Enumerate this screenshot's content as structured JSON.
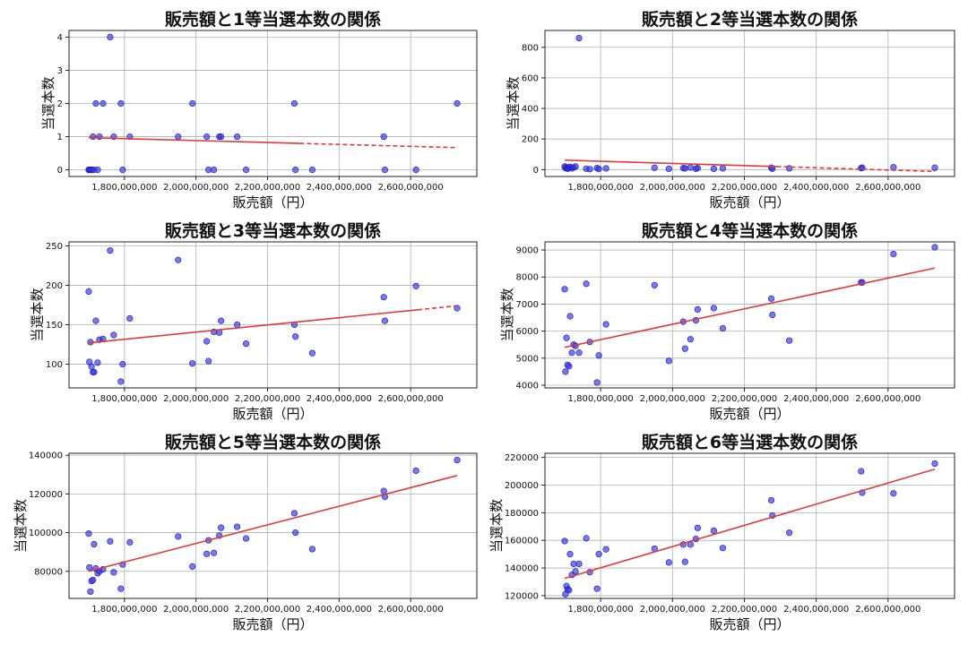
{
  "colors": {
    "point": "#2f2fe8",
    "trend": "#e23a3a",
    "grid": "#b0b0b0"
  },
  "x_values": [
    1700000000,
    1702000000,
    1705000000,
    1708000000,
    1712000000,
    1715000000,
    1720000000,
    1725000000,
    1730000000,
    1740000000,
    1760000000,
    1770000000,
    1790000000,
    1795000000,
    1815000000,
    1950000000,
    1990000000,
    2030000000,
    2035000000,
    2050000000,
    2065000000,
    2070000000,
    2115000000,
    2140000000,
    2275000000,
    2278000000,
    2325000000,
    2525000000,
    2528000000,
    2615000000,
    2730000000
  ],
  "chart_data": [
    {
      "type": "scatter",
      "title": "販売額と1等当選本数の関係",
      "xlabel": "販売額（円）",
      "ylabel": "当選本数",
      "xlim": [
        1645000000,
        2785000000
      ],
      "ylim": [
        -0.2,
        4.2
      ],
      "x_ticks": [
        1800000000,
        2000000000,
        2200000000,
        2400000000,
        2600000000
      ],
      "x_tick_labels": [
        "1,800,000,000",
        "2,000,000,000",
        "2,200,000,000",
        "2,400,000,000",
        "2,600,000,000"
      ],
      "y_ticks": [
        0,
        1,
        2,
        3,
        4
      ],
      "y_tick_labels": [
        "0",
        "1",
        "2",
        "3",
        "4"
      ],
      "y": [
        0,
        0,
        0,
        0,
        1,
        0,
        2,
        0,
        1,
        2,
        4,
        1,
        2,
        0,
        1,
        1,
        2,
        1,
        0,
        0,
        1,
        1,
        1,
        0,
        2,
        0,
        0,
        1,
        0,
        0,
        2
      ],
      "trend": {
        "x": [
          1700000000,
          2730000000
        ],
        "y": [
          0.97,
          0.67
        ],
        "solid_until": 2290000000
      },
      "grid": true
    },
    {
      "type": "scatter",
      "title": "販売額と2等当選本数の関係",
      "xlabel": "販売額（円）",
      "ylabel": "当選本数",
      "xlim": [
        1645000000,
        2785000000
      ],
      "ylim": [
        -45,
        910
      ],
      "x_ticks": [
        1800000000,
        2000000000,
        2200000000,
        2400000000,
        2600000000
      ],
      "x_tick_labels": [
        "1,800,000,000",
        "2,000,000,000",
        "2,200,000,000",
        "2,400,000,000",
        "2,600,000,000"
      ],
      "y_ticks": [
        0,
        200,
        400,
        600,
        800
      ],
      "y_tick_labels": [
        "0",
        "200",
        "400",
        "600",
        "800"
      ],
      "y": [
        20,
        10,
        15,
        5,
        12,
        18,
        8,
        14,
        20,
        860,
        6,
        3,
        10,
        4,
        8,
        12,
        5,
        10,
        8,
        14,
        6,
        10,
        5,
        8,
        12,
        6,
        8,
        10,
        12,
        15,
        12
      ],
      "trend": {
        "x": [
          1700000000,
          2730000000
        ],
        "y": [
          62,
          -12
        ],
        "solid_until": 2290000000
      },
      "grid": true
    },
    {
      "type": "scatter",
      "title": "販売額と3等当選本数の関係",
      "xlabel": "販売額（円）",
      "ylabel": "当選本数",
      "xlim": [
        1645000000,
        2785000000
      ],
      "ylim": [
        70,
        255
      ],
      "x_ticks": [
        1800000000,
        2000000000,
        2200000000,
        2400000000,
        2600000000
      ],
      "x_tick_labels": [
        "1,800,000,000",
        "2,000,000,000",
        "2,200,000,000",
        "2,400,000,000",
        "2,600,000,000"
      ],
      "y_ticks": [
        100,
        150,
        200,
        250
      ],
      "y_tick_labels": [
        "100",
        "150",
        "200",
        "250"
      ],
      "y": [
        192,
        103,
        128,
        97,
        90,
        90,
        155,
        102,
        131,
        132,
        244,
        137,
        78,
        100,
        158,
        232,
        101,
        129,
        104,
        141,
        140,
        155,
        150,
        126,
        150,
        135,
        114,
        185,
        155,
        199,
        171
      ],
      "trend": {
        "x": [
          1700000000,
          2730000000
        ],
        "y": [
          127,
          174
        ],
        "solid_until": 2620000000
      },
      "grid": true
    },
    {
      "type": "scatter",
      "title": "販売額と4等当選本数の関係",
      "xlabel": "販売額（円）",
      "ylabel": "当選本数",
      "xlim": [
        1645000000,
        2785000000
      ],
      "ylim": [
        3900,
        9300
      ],
      "x_ticks": [
        1800000000,
        2000000000,
        2200000000,
        2400000000,
        2600000000
      ],
      "x_tick_labels": [
        "1,800,000,000",
        "2,000,000,000",
        "2,200,000,000",
        "2,400,000,000",
        "2,600,000,000"
      ],
      "y_ticks": [
        4000,
        5000,
        6000,
        7000,
        8000,
        9000
      ],
      "y_tick_labels": [
        "4000",
        "5000",
        "6000",
        "7000",
        "8000",
        "9000"
      ],
      "y": [
        7550,
        4500,
        5750,
        4750,
        4700,
        6550,
        5200,
        5500,
        5450,
        5200,
        7750,
        5600,
        4100,
        5100,
        6250,
        7700,
        4900,
        6350,
        5350,
        5700,
        6400,
        6800,
        6850,
        6100,
        7200,
        6600,
        5650,
        7800,
        7800,
        8850,
        9100
      ],
      "trend": {
        "x": [
          1700000000,
          2730000000
        ],
        "y": [
          5400,
          8330
        ]
      },
      "grid": true
    },
    {
      "type": "scatter",
      "title": "販売額と5等当選本数の関係",
      "xlabel": "販売額（円）",
      "ylabel": "当選本数",
      "xlim": [
        1645000000,
        2785000000
      ],
      "ylim": [
        66000,
        141000
      ],
      "x_ticks": [
        1800000000,
        2000000000,
        2200000000,
        2400000000,
        2600000000
      ],
      "x_tick_labels": [
        "1,800,000,000",
        "2,000,000,000",
        "2,200,000,000",
        "2,400,000,000",
        "2,600,000,000"
      ],
      "y_ticks": [
        80000,
        100000,
        120000,
        140000
      ],
      "y_tick_labels": [
        "80000",
        "100000",
        "120000",
        "140000"
      ],
      "y": [
        99500,
        82000,
        69500,
        75000,
        75500,
        94000,
        81500,
        79000,
        80000,
        81000,
        95500,
        79500,
        71000,
        83500,
        95000,
        98000,
        82500,
        89000,
        96000,
        89500,
        98500,
        102500,
        103000,
        97000,
        110000,
        100000,
        91500,
        121500,
        118500,
        132000,
        137500
      ],
      "trend": {
        "x": [
          1700000000,
          2730000000
        ],
        "y": [
          80000,
          129500
        ]
      },
      "grid": true
    },
    {
      "type": "scatter",
      "title": "販売額と6等当選本数の関係",
      "xlabel": "販売額（円）",
      "ylabel": "当選本数",
      "xlim": [
        1645000000,
        2785000000
      ],
      "ylim": [
        118000,
        223000
      ],
      "x_ticks": [
        1800000000,
        2000000000,
        2200000000,
        2400000000,
        2600000000
      ],
      "x_tick_labels": [
        "1,800,000,000",
        "2,000,000,000",
        "2,200,000,000",
        "2,400,000,000",
        "2,600,000,000"
      ],
      "y_ticks": [
        120000,
        140000,
        160000,
        180000,
        200000,
        220000
      ],
      "y_tick_labels": [
        "120000",
        "140000",
        "160000",
        "180000",
        "200000",
        "220000"
      ],
      "y": [
        159500,
        121000,
        127000,
        124500,
        124000,
        150000,
        135000,
        143000,
        137500,
        143000,
        161500,
        137000,
        125000,
        150000,
        153500,
        154000,
        144000,
        157000,
        144500,
        157000,
        161000,
        169000,
        167000,
        154500,
        189000,
        178000,
        165500,
        210000,
        194500,
        194000,
        215500
      ],
      "trend": {
        "x": [
          1700000000,
          2730000000
        ],
        "y": [
          132500,
          211500
        ]
      },
      "grid": true
    }
  ]
}
